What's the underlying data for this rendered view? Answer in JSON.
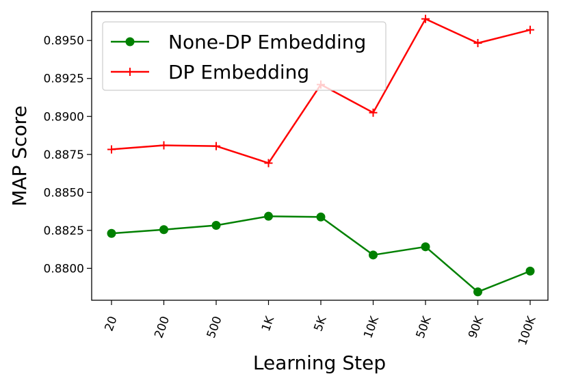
{
  "chart_data": {
    "type": "line",
    "categories": [
      "20",
      "200",
      "500",
      "1K",
      "5K",
      "10K",
      "50K",
      "90K",
      "100K"
    ],
    "series": [
      {
        "name": "None-DP Embedding",
        "color": "#008000",
        "marker": "circle",
        "values": [
          0.8823,
          0.88255,
          0.88283,
          0.88343,
          0.88338,
          0.88088,
          0.88142,
          0.87845,
          0.87982
        ]
      },
      {
        "name": "DP Embedding",
        "color": "#ff0000",
        "marker": "plus",
        "values": [
          0.88783,
          0.8881,
          0.88805,
          0.88693,
          0.8921,
          0.89025,
          0.89642,
          0.89483,
          0.8957
        ]
      }
    ],
    "xlabel": "Learning Step",
    "ylabel": "MAP Score",
    "ylim": [
      0.8779,
      0.8969
    ],
    "yticks": [
      "0.8800",
      "0.8825",
      "0.8850",
      "0.8875",
      "0.8900",
      "0.8925",
      "0.8950"
    ],
    "grid": false,
    "legend_position": "top-left"
  }
}
